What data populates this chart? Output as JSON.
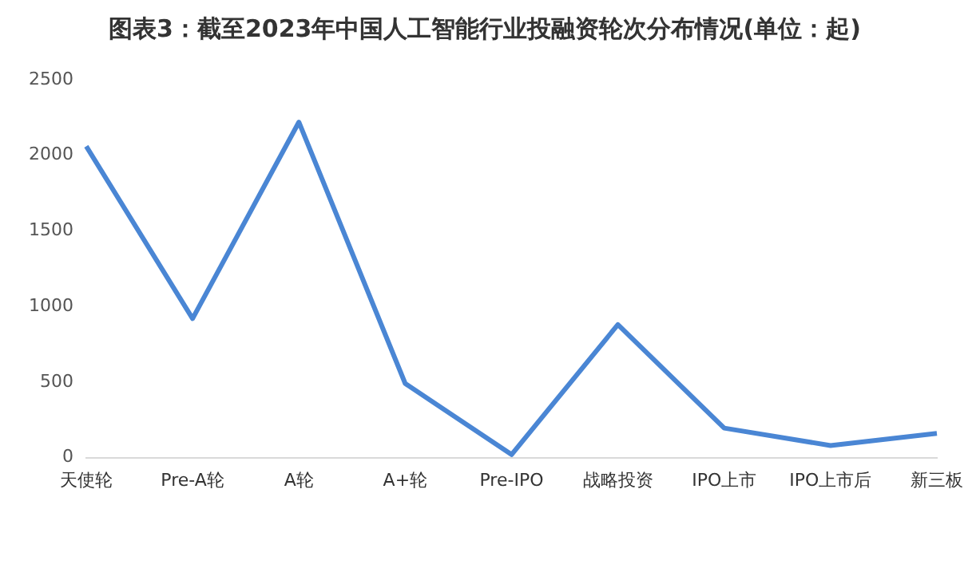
{
  "chart_data": {
    "type": "line",
    "title": "图表3：截至2023年中国人工智能行业投融资轮次分布情况(单位：起)",
    "categories": [
      "天使轮",
      "Pre-A轮",
      "A轮",
      "A+轮",
      "Pre-IPO",
      "战略投资",
      "IPO上市",
      "IPO上市后",
      "新三板"
    ],
    "series": [
      {
        "color": "#4a86d4",
        "values": [
          2060,
          920,
          2220,
          490,
          20,
          880,
          195,
          80,
          160
        ]
      }
    ],
    "ylim": [
      0,
      2500
    ],
    "yticks": [
      0,
      500,
      1000,
      1500,
      2000,
      2500
    ],
    "grid": false,
    "legend": false,
    "marker": "none",
    "line_style": "solid"
  }
}
